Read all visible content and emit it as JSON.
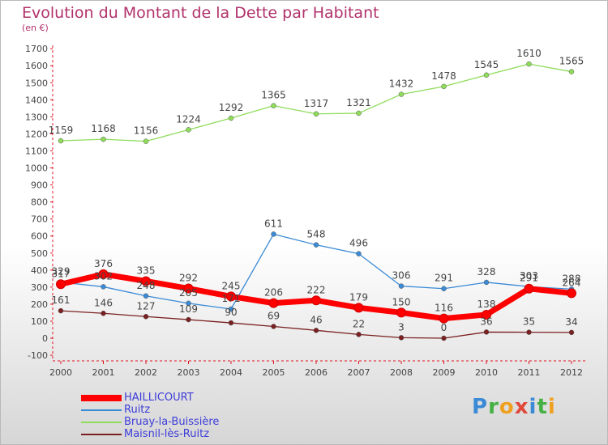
{
  "title": "Evolution du Montant de la Dette par Habitant",
  "unit_label": "(en €)",
  "logo": "Proxiti",
  "chart_data": {
    "type": "line",
    "x": [
      "2000",
      "2001",
      "2002",
      "2003",
      "2004",
      "2005",
      "2006",
      "2007",
      "2008",
      "2009",
      "2010",
      "2011",
      "2012"
    ],
    "ylim": [
      -100,
      1700
    ],
    "yticks": [
      -100,
      0,
      100,
      200,
      300,
      400,
      500,
      600,
      700,
      800,
      900,
      1000,
      1100,
      1200,
      1300,
      1400,
      1500,
      1600,
      1700
    ],
    "grid": false,
    "legend_position": "bottom-left",
    "series": [
      {
        "name": "HAILLICOURT",
        "color": "#ff0000",
        "values": [
          317,
          376,
          335,
          292,
          245,
          206,
          222,
          179,
          150,
          116,
          138,
          291,
          264
        ]
      },
      {
        "name": "Ruitz",
        "color": "#3a8ad6",
        "values": [
          329,
          302,
          248,
          205,
          171,
          611,
          548,
          496,
          306,
          291,
          328,
          303,
          288
        ]
      },
      {
        "name": "Bruay-la-Buissière",
        "color": "#8fdc5a",
        "values": [
          1159,
          1168,
          1156,
          1224,
          1292,
          1365,
          1317,
          1321,
          1432,
          1478,
          1545,
          1610,
          1565
        ]
      },
      {
        "name": "Maisnil-lès-Ruitz",
        "color": "#7a2020",
        "values": [
          161,
          146,
          127,
          109,
          90,
          69,
          46,
          22,
          3,
          0,
          36,
          35,
          34
        ]
      }
    ]
  }
}
